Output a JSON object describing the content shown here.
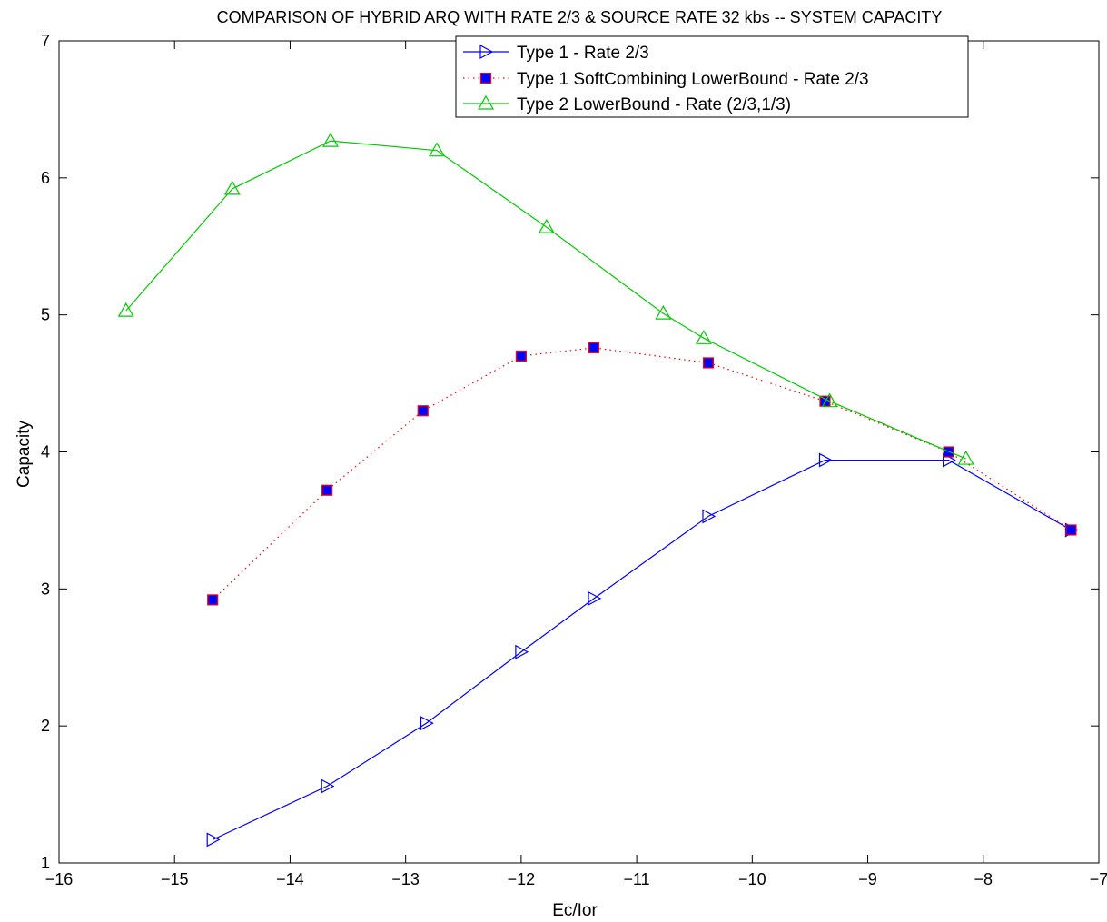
{
  "chart_data": {
    "type": "line",
    "title": "COMPARISON OF HYBRID ARQ WITH RATE 2/3 & SOURCE RATE 32 kbs -- SYSTEM CAPACITY",
    "xlabel": "Ec/Ior",
    "ylabel": "Capacity",
    "xlim": [
      -16,
      -7
    ],
    "ylim": [
      1,
      7
    ],
    "xticks": [
      -16,
      -15,
      -14,
      -13,
      -12,
      -11,
      -10,
      -9,
      -8,
      -7
    ],
    "yticks": [
      1,
      2,
      3,
      4,
      5,
      6,
      7
    ],
    "xtick_labels": [
      "−16",
      "−15",
      "−14",
      "−13",
      "−12",
      "−11",
      "−10",
      "−9",
      "−8",
      "−7"
    ],
    "ytick_labels": [
      "1",
      "2",
      "3",
      "4",
      "5",
      "6",
      "7"
    ],
    "grid": false,
    "legend_position": "top-center",
    "series": [
      {
        "name": "Type 1 - Rate 2/3",
        "color": "#0000ff",
        "line_style": "solid",
        "marker": "triangle-right",
        "x": [
          -14.67,
          -13.68,
          -12.82,
          -12.0,
          -11.37,
          -10.38,
          -9.37,
          -8.3,
          -7.24
        ],
        "y": [
          1.17,
          1.56,
          2.02,
          2.54,
          2.93,
          3.53,
          3.94,
          3.94,
          3.43
        ]
      },
      {
        "name": "Type 1 SoftCombining LowerBound - Rate 2/3",
        "color": "#ff0000",
        "marker_fill": "#0000ff",
        "line_style": "dotted",
        "marker": "square",
        "x": [
          -14.67,
          -13.68,
          -12.85,
          -12.0,
          -11.37,
          -10.38,
          -9.37,
          -8.3,
          -7.24
        ],
        "y": [
          2.92,
          3.72,
          4.3,
          4.7,
          4.76,
          4.65,
          4.37,
          4.0,
          3.43
        ]
      },
      {
        "name": "Type 2  LowerBound - Rate (2/3,1/3)",
        "color": "#00cc00",
        "line_style": "solid",
        "marker": "triangle-up",
        "x": [
          -15.42,
          -14.5,
          -13.65,
          -12.73,
          -11.78,
          -10.77,
          -10.42,
          -9.33,
          -8.15
        ],
        "y": [
          5.03,
          5.92,
          6.27,
          6.2,
          5.64,
          5.01,
          4.83,
          4.37,
          3.95
        ]
      }
    ]
  }
}
